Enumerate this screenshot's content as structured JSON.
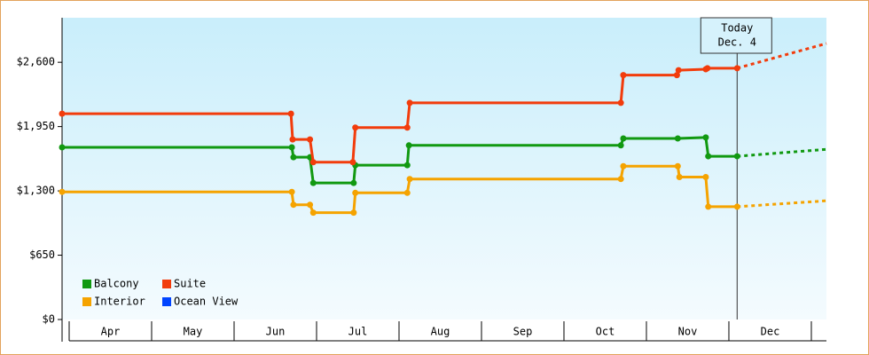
{
  "chart_data": {
    "type": "line",
    "ylim": [
      0,
      3050
    ],
    "yticks": [
      {
        "value": 0,
        "label": "$0"
      },
      {
        "value": 650,
        "label": "$650"
      },
      {
        "value": 1300,
        "label": "$1,300"
      },
      {
        "value": 1950,
        "label": "$1,950"
      },
      {
        "value": 2600,
        "label": "$2,600"
      }
    ],
    "xlim": [
      3.914,
      13.183
    ],
    "xticks": [
      {
        "value": 4,
        "label": "Apr"
      },
      {
        "value": 5,
        "label": "May"
      },
      {
        "value": 6,
        "label": "Jun"
      },
      {
        "value": 7,
        "label": "Jul"
      },
      {
        "value": 8,
        "label": "Aug"
      },
      {
        "value": 9,
        "label": "Sep"
      },
      {
        "value": 10,
        "label": "Oct"
      },
      {
        "value": 11,
        "label": "Nov"
      },
      {
        "value": 12,
        "label": "Dec"
      }
    ],
    "today": {
      "x": 12.1,
      "text": [
        "Today",
        "Dec. 4"
      ]
    },
    "series": [
      {
        "name": "Balcony",
        "color": "#119911",
        "x": [
          3.914,
          6.7,
          6.72,
          6.92,
          6.96,
          7.45,
          7.47,
          8.1,
          8.12,
          10.69,
          10.72,
          11.38,
          11.72,
          11.75,
          12.1,
          13.183
        ],
        "values": [
          1740,
          1740,
          1640,
          1640,
          1380,
          1380,
          1560,
          1560,
          1760,
          1760,
          1830,
          1830,
          1840,
          1650,
          1650,
          1720
        ]
      },
      {
        "name": "Suite",
        "color": "#f23c0c",
        "x": [
          3.914,
          6.69,
          6.71,
          6.92,
          6.96,
          7.44,
          7.47,
          8.1,
          8.13,
          10.69,
          10.72,
          11.37,
          11.39,
          11.72,
          11.74,
          12.1,
          13.183
        ],
        "values": [
          2080,
          2080,
          1820,
          1820,
          1590,
          1590,
          1940,
          1940,
          2190,
          2190,
          2470,
          2470,
          2520,
          2530,
          2540,
          2540,
          2790
        ]
      },
      {
        "name": "Interior",
        "color": "#f5a300",
        "x": [
          3.914,
          6.7,
          6.72,
          6.92,
          6.96,
          7.45,
          7.47,
          8.1,
          8.13,
          10.69,
          10.72,
          11.38,
          11.4,
          11.72,
          11.75,
          12.1,
          13.183
        ],
        "values": [
          1290,
          1290,
          1160,
          1160,
          1080,
          1080,
          1280,
          1280,
          1420,
          1420,
          1550,
          1550,
          1440,
          1440,
          1140,
          1140,
          1200
        ]
      },
      {
        "name": "Ocean View",
        "color": "#0044ff",
        "x": [],
        "values": []
      }
    ]
  }
}
